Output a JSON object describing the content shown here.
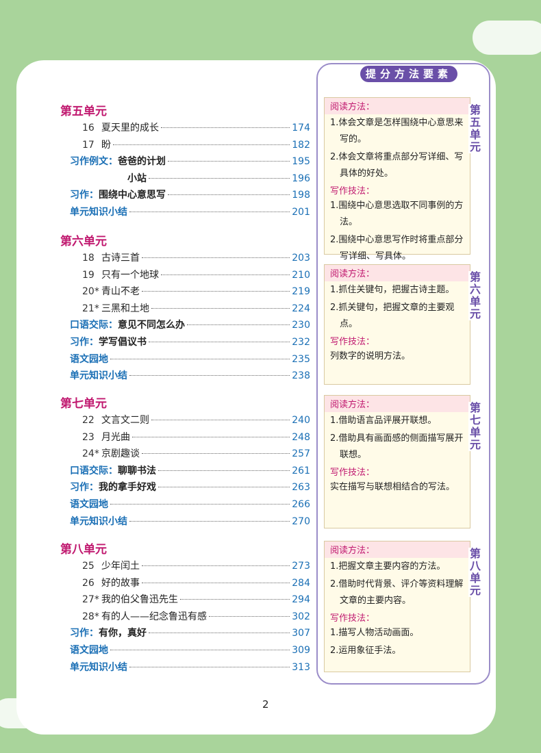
{
  "panel_title": "提分方法要素",
  "units": [
    {
      "title": "第五单元",
      "entries": [
        {
          "num": "16",
          "title": "夏天里的成长",
          "page": 174
        },
        {
          "num": "17",
          "title": "盼",
          "page": 182
        },
        {
          "label": "习作例文：",
          "title": "爸爸的计划",
          "page": 195
        },
        {
          "title": "小站",
          "page": 196
        },
        {
          "label": "习作：",
          "title": "围绕中心意思写",
          "page": 198
        },
        {
          "label": "单元知识小结",
          "page": 201
        }
      ],
      "side": {
        "tab": "第五单元",
        "read_label": "阅读方法：",
        "read_items": [
          "1.体会文章是怎样围绕中心意思来写的。",
          "2.体会文章将重点部分写详细、写具体的好处。"
        ],
        "write_label": "写作技法：",
        "write_items": [
          "1.围绕中心意思选取不同事例的方法。",
          "2.围绕中心意思写作时将重点部分写详细、写具体。"
        ]
      }
    },
    {
      "title": "第六单元",
      "entries": [
        {
          "num": "18",
          "title": "古诗三首",
          "page": 203
        },
        {
          "num": "19",
          "title": "只有一个地球",
          "page": 210
        },
        {
          "num": "20*",
          "title": "青山不老",
          "page": 219
        },
        {
          "num": "21*",
          "title": "三黑和土地",
          "page": 224
        },
        {
          "label": "口语交际：",
          "title": "意见不同怎么办",
          "page": 230
        },
        {
          "label": "习作：",
          "title": "学写倡议书",
          "page": 232
        },
        {
          "label": "语文园地",
          "page": 235
        },
        {
          "label": "单元知识小结",
          "page": 238
        }
      ],
      "side": {
        "tab": "第六单元",
        "read_label": "阅读方法：",
        "read_items": [
          "1.抓住关键句，把握古诗主题。",
          "2.抓关键句，把握文章的主要观点。"
        ],
        "write_label": "写作技法：",
        "write_items": [
          "列数字的说明方法。"
        ]
      }
    },
    {
      "title": "第七单元",
      "entries": [
        {
          "num": "22",
          "title": "文言文二则",
          "page": 240
        },
        {
          "num": "23",
          "title": "月光曲",
          "page": 248
        },
        {
          "num": "24*",
          "title": "京剧趣谈",
          "page": 257
        },
        {
          "label": "口语交际：",
          "title": "聊聊书法",
          "page": 261
        },
        {
          "label": "习作：",
          "title": "我的拿手好戏",
          "page": 263
        },
        {
          "label": "语文园地",
          "page": 266
        },
        {
          "label": "单元知识小结",
          "page": 270
        }
      ],
      "side": {
        "tab": "第七单元",
        "read_label": "阅读方法：",
        "read_items": [
          "1.借助语言品评展开联想。",
          "2.借助具有画面感的侧面描写展开联想。"
        ],
        "write_label": "写作技法：",
        "write_items": [
          "实在描写与联想相结合的写法。"
        ]
      }
    },
    {
      "title": "第八单元",
      "entries": [
        {
          "num": "25",
          "title": "少年闰土",
          "page": 273
        },
        {
          "num": "26",
          "title": "好的故事",
          "page": 284
        },
        {
          "num": "27*",
          "title": "我的伯父鲁迅先生",
          "page": 294
        },
        {
          "num": "28*",
          "title": "有的人——纪念鲁迅有感",
          "page": 302
        },
        {
          "label": "习作：",
          "title": "有你，真好",
          "page": 307
        },
        {
          "label": "语文园地",
          "page": 309
        },
        {
          "label": "单元知识小结",
          "page": 313
        }
      ],
      "side": {
        "tab": "第八单元",
        "read_label": "阅读方法：",
        "read_items": [
          "1.把握文章主要内容的方法。",
          "2.借助时代背景、评介等资料理解文章的主要内容。"
        ],
        "write_label": "写作技法：",
        "write_items": [
          "1.描写人物活动画面。",
          "2.运用象征手法。"
        ]
      }
    }
  ],
  "page_number": "2"
}
